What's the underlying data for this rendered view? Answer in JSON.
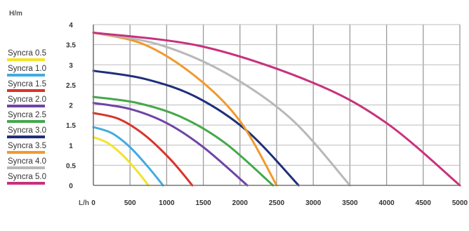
{
  "chart_data": {
    "type": "line",
    "ylabel": "H/m",
    "xlabel": "L/h",
    "xlim": [
      0,
      5000
    ],
    "ylim": [
      0,
      4
    ],
    "x_ticks": [
      "0",
      "500",
      "1000",
      "1500",
      "2000",
      "2500",
      "3000",
      "3500",
      "4000",
      "4500",
      "5000"
    ],
    "y_ticks": [
      "0",
      "0.5",
      "1",
      "1.5",
      "2",
      "2.5",
      "3",
      "3.5",
      "4"
    ],
    "grid": true,
    "legend_position": "left",
    "series": [
      {
        "name": "Syncra 0.5",
        "color": "#f2e32b",
        "x": [
          0,
          200,
          400,
          600,
          750
        ],
        "y": [
          1.2,
          1.05,
          0.75,
          0.35,
          0
        ]
      },
      {
        "name": "Syncra 1.0",
        "color": "#41ace0",
        "x": [
          0,
          250,
          500,
          750,
          950
        ],
        "y": [
          1.45,
          1.3,
          0.95,
          0.45,
          0
        ]
      },
      {
        "name": "Syncra 1.5",
        "color": "#d9342b",
        "x": [
          0,
          350,
          700,
          1050,
          1350
        ],
        "y": [
          1.8,
          1.65,
          1.25,
          0.65,
          0
        ]
      },
      {
        "name": "Syncra 2.0",
        "color": "#6e44a5",
        "x": [
          0,
          500,
          1000,
          1500,
          2100
        ],
        "y": [
          2.05,
          1.9,
          1.55,
          0.95,
          0
        ]
      },
      {
        "name": "Syncra 2.5",
        "color": "#45a84a",
        "x": [
          0,
          600,
          1200,
          1800,
          2450
        ],
        "y": [
          2.2,
          2.05,
          1.7,
          1.05,
          0
        ]
      },
      {
        "name": "Syncra 3.0",
        "color": "#1f2f7a",
        "x": [
          0,
          700,
          1400,
          2100,
          2800
        ],
        "y": [
          2.85,
          2.65,
          2.2,
          1.35,
          0
        ]
      },
      {
        "name": "Syncra 3.5",
        "color": "#f09a2c",
        "x": [
          0,
          700,
          1400,
          2000,
          2500
        ],
        "y": [
          3.8,
          3.5,
          2.7,
          1.6,
          0
        ]
      },
      {
        "name": "Syncra 4.0",
        "color": "#b8b8b8",
        "x": [
          0,
          900,
          1800,
          2700,
          3500
        ],
        "y": [
          3.8,
          3.5,
          2.8,
          1.65,
          0
        ]
      },
      {
        "name": "Syncra 5.0",
        "color": "#c8317d",
        "x": [
          0,
          1500,
          3000,
          4000,
          5000
        ],
        "y": [
          3.8,
          3.45,
          2.55,
          1.55,
          0
        ]
      }
    ]
  }
}
